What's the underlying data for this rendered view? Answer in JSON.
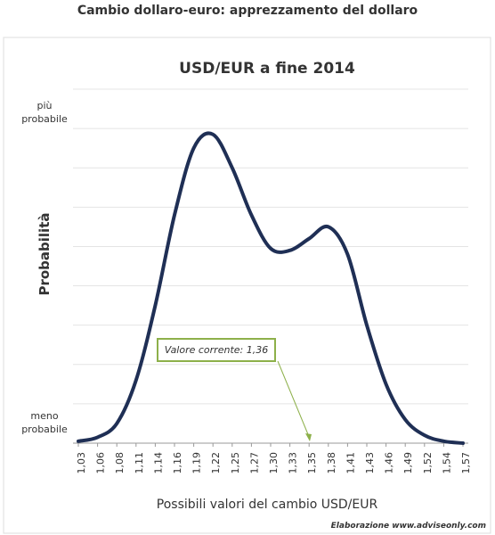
{
  "header": "Cambio dollaro-euro: apprezzamento del dollaro",
  "chart_data": {
    "type": "line",
    "title": "USD/EUR a fine 2014",
    "x_label": "Possibili valori del cambio USD/EUR",
    "y_label": "Probabilità",
    "y_top_label": "più probabile",
    "y_bottom_label": "meno probabile",
    "categories": [
      "1,03",
      "1,06",
      "1,08",
      "1,11",
      "1,14",
      "1,16",
      "1,19",
      "1,22",
      "1,25",
      "1,27",
      "1,30",
      "1,33",
      "1,35",
      "1,38",
      "1,41",
      "1,43",
      "1,46",
      "1,49",
      "1,52",
      "1,54",
      "1,57"
    ],
    "series": [
      {
        "name": "USD/EUR",
        "color": "#1f2f55",
        "values": [
          0.05,
          0.15,
          0.5,
          1.6,
          3.5,
          5.8,
          7.5,
          7.85,
          7.0,
          5.8,
          4.95,
          4.9,
          5.2,
          5.5,
          4.8,
          3.0,
          1.5,
          0.6,
          0.2,
          0.05,
          0.0
        ]
      }
    ],
    "ylim": [
      0,
      9
    ],
    "yticks": [
      0,
      1,
      2,
      3,
      4,
      5,
      6,
      7,
      8,
      9
    ],
    "grid": true,
    "annotation": "Valore corrente:  1,36",
    "source": "Elaborazione  www.adviseonly.com"
  }
}
